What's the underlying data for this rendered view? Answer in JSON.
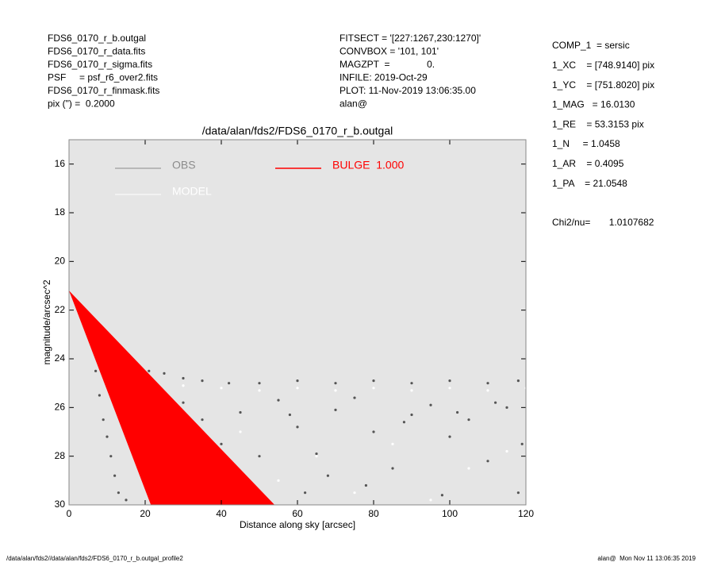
{
  "chart_data": {
    "type": "scatter",
    "title": "/data/alan/fds2/FDS6_0170_r_b.outgal",
    "x_label": "Distance along sky [arcsec]",
    "y_label": "magnitude/arcsec^2",
    "header_left": [
      "FDS6_0170_r_b.outgal",
      "FDS6_0170_r_data.fits",
      "FDS6_0170_r_sigma.fits",
      "PSF     = psf_r6_over2.fits",
      "FDS6_0170_r_finmask.fits",
      "pix (\") =  0.2000"
    ],
    "header_middle": [
      "FITSECT = '[227:1267,230:1270]'",
      "CONVBOX = '101, 101'",
      "MAGZPT  =              0.",
      "INFILE: 2019-Oct-29",
      "PLOT: 11-Nov-2019 13:06:35.00",
      "alan@"
    ],
    "params": [
      "COMP_1  = sersic",
      "1_XC    = [748.9140] pix",
      "1_YC    = [751.8020] pix",
      "1_MAG   = 16.0130",
      "1_RE    = 53.3153 pix",
      "1_N     = 1.0458",
      "1_AR    = 0.4095",
      "1_PA    = 21.0548",
      "Chi2/nu=       1.0107682"
    ],
    "footer_left": "/data/alan/fds2//data/alan/fds2/FDS6_0170_r_b.outgal_profile2",
    "footer_right": "alan@  Mon Nov 11 13:06:35 2019",
    "xlim": [
      0,
      120
    ],
    "ylim": [
      15,
      30
    ],
    "y_inverted": true,
    "xticks": [
      0,
      20,
      40,
      60,
      80,
      100,
      120
    ],
    "yticks": [
      16,
      18,
      20,
      22,
      24,
      26,
      28,
      30
    ],
    "background": "#e5e5e5",
    "series": [
      {
        "name": "OBS",
        "color": "#555555",
        "legend_color": "#8c8c8c",
        "x": [
          3,
          5,
          7,
          9,
          11,
          13,
          15,
          18,
          21,
          25,
          30,
          35,
          42,
          50,
          60,
          70,
          80,
          90,
          100,
          110,
          118,
          7,
          8,
          9,
          10,
          11,
          12,
          13,
          20,
          25,
          30,
          35,
          40,
          45,
          50,
          55,
          60,
          65,
          70,
          75,
          80,
          85,
          90,
          95,
          100,
          105,
          110,
          115,
          119,
          62,
          78,
          98,
          58,
          88,
          102,
          112,
          68,
          15,
          40,
          118
        ],
        "values": [
          22.0,
          22.4,
          22.9,
          23.3,
          23.6,
          23.9,
          24.1,
          24.3,
          24.5,
          24.6,
          24.8,
          24.9,
          25.0,
          25.0,
          24.9,
          25.0,
          24.9,
          25.0,
          24.9,
          25.0,
          24.9,
          24.5,
          25.5,
          26.5,
          27.2,
          28.0,
          28.8,
          29.5,
          26.0,
          27.0,
          25.8,
          26.5,
          27.5,
          26.2,
          28.0,
          25.7,
          26.8,
          27.9,
          26.1,
          25.6,
          27.0,
          28.5,
          26.3,
          25.9,
          27.2,
          26.5,
          28.2,
          26.0,
          27.5,
          29.5,
          29.2,
          29.6,
          26.3,
          26.6,
          26.2,
          25.8,
          28.8,
          29.8,
          29.7,
          29.5
        ]
      },
      {
        "name": "MODEL",
        "color": "#ffffff",
        "x": [
          30,
          40,
          50,
          60,
          70,
          80,
          90,
          100,
          110,
          120,
          45,
          65,
          85,
          105,
          75,
          55,
          95,
          115,
          35,
          25
        ],
        "values": [
          25.1,
          25.2,
          25.3,
          25.2,
          25.3,
          25.2,
          25.3,
          25.2,
          25.3,
          25.2,
          27.0,
          28.0,
          27.5,
          28.5,
          29.5,
          29.0,
          29.8,
          27.8,
          28.5,
          29.0
        ]
      },
      {
        "name": "BULGE  1.000",
        "color": "#ff0000",
        "shape": "area",
        "x": [
          0,
          21.5,
          54
        ],
        "values": [
          21.2,
          30,
          30
        ]
      }
    ]
  }
}
